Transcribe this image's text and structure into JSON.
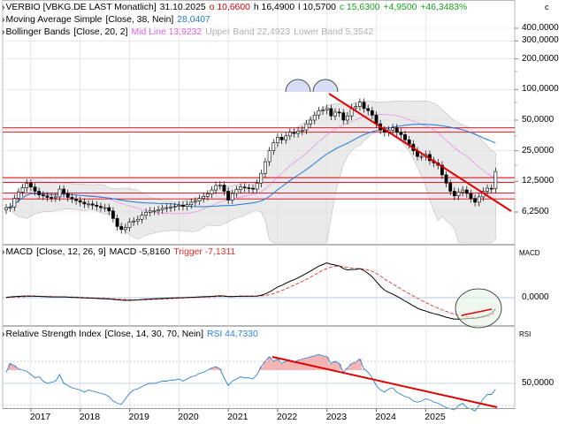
{
  "legend": {
    "main": {
      "name": "VERBIO [VBKG.DE LAST Monatlich]",
      "date": "31.10.2025",
      "open": "o 10,6600",
      "high": "h 16,4900",
      "low": "l 10,5700",
      "close": "c 15,6300",
      "change": "+4,9500",
      "change_pct": "+46,3483%",
      "corner": "c"
    },
    "ma": {
      "label": "Moving Average Simple",
      "params": "[Close, 38, Nein]",
      "value": "28,0407"
    },
    "bb": {
      "label": "Bollinger Bands",
      "params": "[Close, 20, 2]",
      "mid": "Mid Line 13,9232",
      "upper": "Upper Band 22,4923",
      "lower": "Lower Band 5,3542"
    },
    "macd": {
      "label": "MACD",
      "params": "[Close, 12, 26, 9]",
      "value": "MACD -5,8160",
      "trigger": "Trigger -7,1311",
      "corner": "MACD"
    },
    "rsi": {
      "label": "Relative Strength Index",
      "params": "[Close, 14, 30, 70, Nein]",
      "value": "RSI 44,7330",
      "corner": "RSI"
    }
  },
  "colors": {
    "up": "#ffffff",
    "down": "#000000",
    "ma": "#1f78d8",
    "bb_mid": "#e060e0",
    "bb_band": "#d9d9d9",
    "trend": "#e00000",
    "change": "#17a117",
    "rsi": "#2a7fd4",
    "rsi_fill": "#f2a0a0",
    "macd_signal": "#e03030"
  },
  "chart_data": [
    {
      "type": "candlestick",
      "title": "VERBIO [VBKG.DE LAST Monatlich]",
      "y_scale": "log",
      "y_ticks": [
        "400,0000",
        "300,0000",
        "200,0000",
        "100,0000",
        "50,0000",
        "25,0000",
        "12,5000",
        "6,2500"
      ],
      "x_ticks": [
        "2017",
        "2018",
        "2019",
        "2020",
        "2021",
        "2022",
        "2023",
        "2024",
        "2025"
      ],
      "x_start": 2016.5,
      "x_end": 2025.83,
      "close": [
        6.9,
        7.0,
        8.5,
        9.8,
        10.8,
        12.0,
        11.0,
        10.0,
        9.2,
        9.0,
        8.7,
        8.6,
        8.8,
        10.5,
        9.5,
        8.7,
        8.4,
        8.1,
        7.8,
        7.5,
        7.5,
        7.3,
        7.1,
        6.9,
        6.9,
        6.4,
        5.4,
        4.5,
        4.2,
        4.4,
        5.0,
        5.1,
        5.3,
        5.8,
        6.2,
        6.4,
        6.4,
        6.6,
        6.8,
        6.9,
        7.0,
        7.1,
        7.3,
        7.1,
        7.4,
        7.8,
        8.0,
        8.5,
        8.9,
        9.4,
        10.3,
        11.4,
        11.5,
        10.0,
        8.2,
        9.5,
        10.4,
        11.0,
        10.8,
        10.7,
        10.5,
        12.0,
        15.0,
        19.5,
        25.0,
        30.0,
        34.0,
        32.0,
        35.0,
        38.0,
        37.0,
        39.0,
        40.0,
        46.0,
        50.0,
        56.0,
        62.0,
        63.0,
        65.0,
        55.0,
        60.0,
        59.0,
        50.0,
        55.0,
        66.0,
        68.0,
        75.0,
        65.0,
        62.0,
        56.0,
        46.0,
        40.0,
        38.0,
        40.0,
        42.0,
        38.0,
        36.0,
        32.0,
        29.0,
        25.0,
        22.0,
        22.0,
        23.0,
        20.0,
        19.0,
        18.0,
        14.5,
        12.0,
        10.0,
        9.0,
        9.8,
        10.3,
        9.5,
        8.5,
        7.8,
        8.8,
        10.0,
        10.7,
        10.6,
        15.63
      ],
      "annotations": [
        "horizontal support/resistance lines",
        "descending trendline",
        "double-top arcs"
      ]
    },
    {
      "type": "line",
      "title": "MACD [Close, 12, 26, 9]",
      "y_ticks": [
        "0,0000"
      ],
      "series": [
        {
          "name": "MACD",
          "values": [
            0.2,
            0.4,
            0.6,
            0.7,
            0.8,
            0.9,
            0.9,
            0.8,
            0.7,
            0.6,
            0.5,
            0.4,
            0.4,
            0.4,
            0.4,
            0.3,
            0.2,
            0.1,
            0.0,
            -0.1,
            -0.2,
            -0.3,
            -0.4,
            -0.5,
            -0.6,
            -0.7,
            -0.9,
            -1.1,
            -1.3,
            -1.4,
            -1.4,
            -1.3,
            -1.2,
            -1.0,
            -0.8,
            -0.7,
            -0.6,
            -0.5,
            -0.4,
            -0.3,
            -0.2,
            -0.1,
            0.0,
            0.0,
            0.1,
            0.2,
            0.3,
            0.4,
            0.5,
            0.6,
            0.7,
            0.9,
            1.0,
            0.9,
            0.6,
            0.6,
            0.7,
            0.8,
            0.8,
            0.8,
            0.8,
            0.9,
            1.3,
            2.0,
            3.0,
            4.3,
            5.6,
            6.5,
            7.6,
            8.6,
            9.5,
            10.5,
            11.6,
            12.8,
            14.0,
            15.3,
            16.6,
            17.5,
            18.3,
            17.6,
            17.2,
            16.7,
            15.3,
            14.6,
            14.8,
            14.9,
            15.3,
            14.3,
            12.8,
            11.0,
            8.5,
            6.0,
            4.0,
            2.8,
            1.9,
            0.7,
            -0.5,
            -1.8,
            -3.0,
            -4.3,
            -5.5,
            -6.4,
            -7.0,
            -7.8,
            -8.4,
            -8.9,
            -9.6,
            -10.3,
            -10.8,
            -11.3,
            -11.3,
            -11.2,
            -11.0,
            -10.9,
            -10.8,
            -10.5,
            -9.9,
            -9.2,
            -8.3,
            -5.8
          ]
        },
        {
          "name": "Trigger",
          "values": [
            0.1,
            0.2,
            0.3,
            0.4,
            0.5,
            0.6,
            0.7,
            0.7,
            0.7,
            0.7,
            0.6,
            0.6,
            0.5,
            0.5,
            0.5,
            0.4,
            0.4,
            0.3,
            0.2,
            0.1,
            0.0,
            -0.1,
            -0.2,
            -0.3,
            -0.4,
            -0.5,
            -0.6,
            -0.8,
            -0.9,
            -1.0,
            -1.1,
            -1.2,
            -1.2,
            -1.1,
            -1.1,
            -1.0,
            -0.9,
            -0.8,
            -0.7,
            -0.6,
            -0.5,
            -0.4,
            -0.3,
            -0.2,
            -0.1,
            0.0,
            0.1,
            0.2,
            0.3,
            0.4,
            0.5,
            0.6,
            0.7,
            0.7,
            0.7,
            0.7,
            0.7,
            0.7,
            0.7,
            0.7,
            0.8,
            0.8,
            0.9,
            1.2,
            1.6,
            2.2,
            3.0,
            3.8,
            4.6,
            5.6,
            6.6,
            7.6,
            8.6,
            9.7,
            10.8,
            12.0,
            13.2,
            14.4,
            15.4,
            16.1,
            16.5,
            16.6,
            16.3,
            15.9,
            15.6,
            15.4,
            15.3,
            15.1,
            14.6,
            13.9,
            12.8,
            11.4,
            9.9,
            8.5,
            7.2,
            5.9,
            4.6,
            3.3,
            2.1,
            0.9,
            -0.3,
            -1.4,
            -2.5,
            -3.6,
            -4.6,
            -5.5,
            -6.4,
            -7.2,
            -8.0,
            -8.7,
            -9.2,
            -9.7,
            -10.0,
            -10.2,
            -10.3,
            -10.3,
            -10.2,
            -9.9,
            -9.4,
            -7.1
          ]
        }
      ]
    },
    {
      "type": "line",
      "title": "Relative Strength Index [Close, 14, 30, 70, Nein]",
      "y_ticks": [
        "50,0000"
      ],
      "series": [
        {
          "name": "RSI",
          "values": [
            60,
            68,
            66,
            63,
            62,
            61,
            58,
            55,
            56,
            52,
            50,
            51,
            52,
            58,
            50,
            48,
            46,
            45,
            44,
            42,
            44,
            43,
            42,
            41,
            40,
            38,
            34,
            32,
            31,
            36,
            41,
            44,
            45,
            47,
            49,
            50,
            50,
            51,
            52,
            52,
            53,
            53,
            54,
            52,
            54,
            56,
            57,
            59,
            60,
            62,
            64,
            65,
            63,
            55,
            48,
            52,
            54,
            56,
            55,
            55,
            54,
            58,
            65,
            70,
            74,
            70,
            72,
            68,
            70,
            71,
            69,
            71,
            72,
            73,
            74,
            75,
            76,
            75,
            74,
            68,
            70,
            68,
            60,
            64,
            68,
            69,
            72,
            63,
            60,
            55,
            48,
            44,
            42,
            45,
            46,
            42,
            40,
            38,
            37,
            34,
            33,
            34,
            36,
            35,
            33,
            32,
            30,
            28,
            27,
            26,
            30,
            32,
            28,
            27,
            25,
            30,
            36,
            40,
            40,
            44.7
          ]
        }
      ]
    }
  ],
  "axis": {
    "price_ticks": [
      {
        "label": "400,0000",
        "value": 400
      },
      {
        "label": "300,0000",
        "value": 300
      },
      {
        "label": "200,0000",
        "value": 200
      },
      {
        "label": "100,0000",
        "value": 100
      },
      {
        "label": "50,0000",
        "value": 50
      },
      {
        "label": "25,0000",
        "value": 25
      },
      {
        "label": "12,5000",
        "value": 12.5
      },
      {
        "label": "6,2500",
        "value": 6.25
      }
    ],
    "years": [
      {
        "label": "2017",
        "year": 2017
      },
      {
        "label": "2018",
        "year": 2018
      },
      {
        "label": "2019",
        "year": 2019
      },
      {
        "label": "2020",
        "year": 2020
      },
      {
        "label": "2021",
        "year": 2021
      },
      {
        "label": "2022",
        "year": 2022
      },
      {
        "label": "2023",
        "year": 2023
      },
      {
        "label": "2024",
        "year": 2024
      },
      {
        "label": "2025",
        "year": 2025
      }
    ],
    "macd_tick": {
      "label": "0,0000",
      "value": 0
    },
    "rsi_tick": {
      "label": "50,0000",
      "value": 50
    }
  }
}
